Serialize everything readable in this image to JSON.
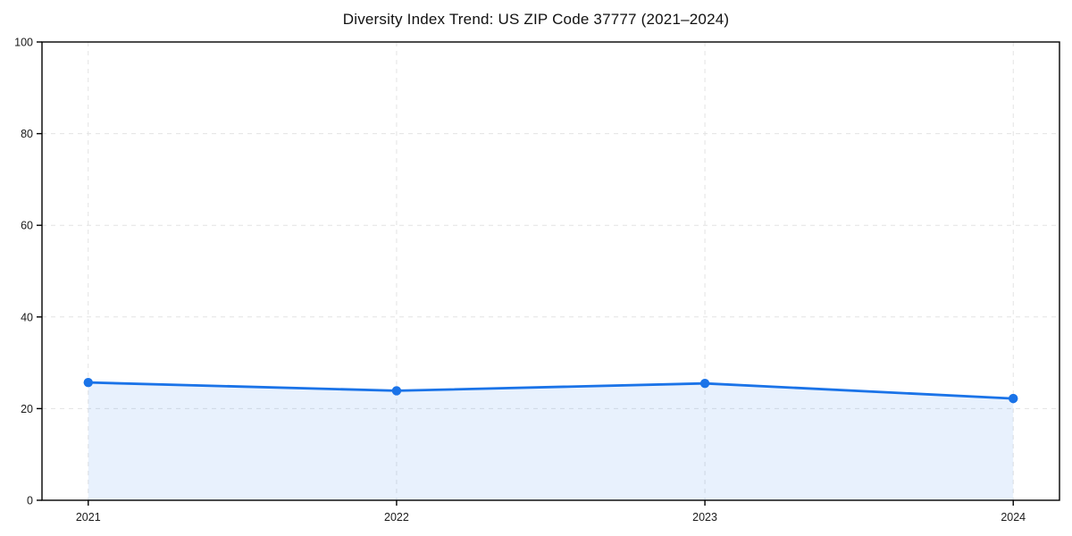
{
  "title": "Diversity Index Trend: US ZIP Code 37777 (2021–2024)",
  "chart_data": {
    "type": "line",
    "title": "Diversity Index Trend: US ZIP Code 37777 (2021–2024)",
    "series_name": "Diversity Index",
    "x": [
      2021,
      2022,
      2023,
      2024
    ],
    "categories": [
      "2021",
      "2022",
      "2023",
      "2024"
    ],
    "values": [
      25.7,
      23.9,
      25.5,
      22.2
    ],
    "xlabel": "",
    "ylabel": "",
    "ylim": [
      0,
      100
    ],
    "yticks": [
      0,
      20,
      40,
      60,
      80,
      100
    ],
    "grid": true,
    "grid_style": "dashed",
    "legend": "none",
    "area_fill": true,
    "colors": {
      "line": "#1a73e8",
      "marker": "#1a73e8",
      "area": "rgba(26,115,232,0.10)",
      "gridline": "#e3e3e3",
      "spine": "#000000",
      "tick_label": "#1a1a1a"
    }
  }
}
